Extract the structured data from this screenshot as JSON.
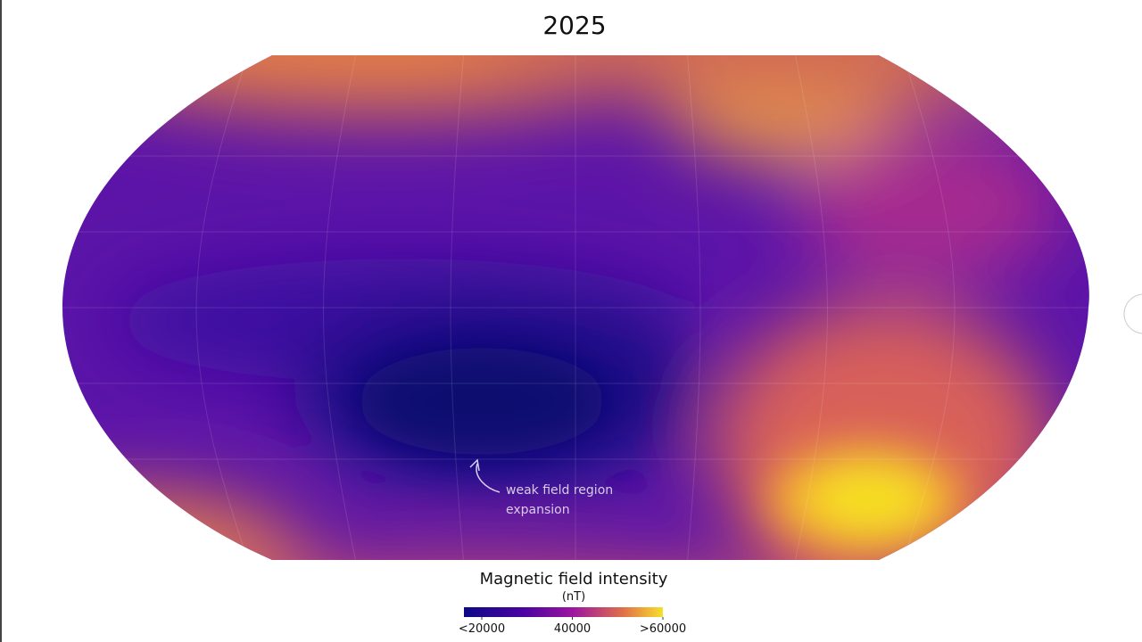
{
  "title": "2025",
  "annotation": {
    "lines": [
      "weak field region",
      "expansion"
    ]
  },
  "legend": {
    "title": "Magnetic field intensity",
    "unit": "(nT)",
    "ticks": [
      {
        "value": 20000,
        "label": "<20000"
      },
      {
        "value": 40000,
        "label": "40000"
      },
      {
        "value": 60000,
        "label": ">60000"
      }
    ]
  }
}
